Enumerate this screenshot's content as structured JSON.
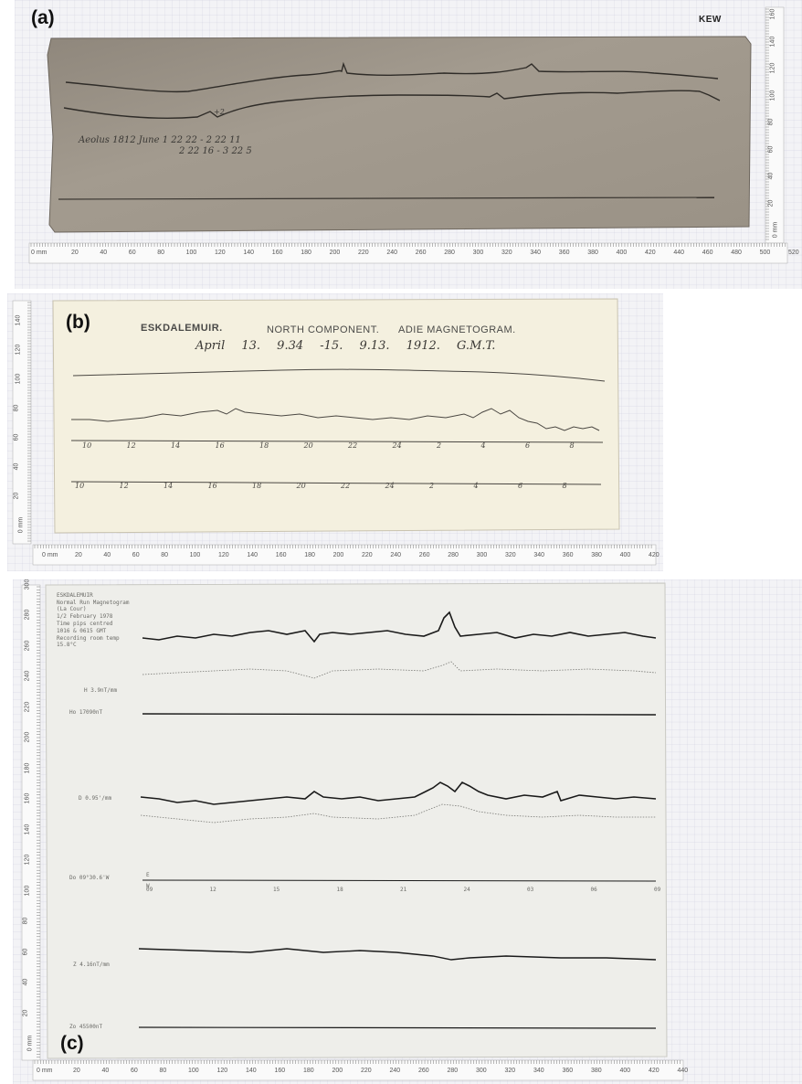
{
  "panels": {
    "a": {
      "label": "(a)",
      "station": "KEW",
      "annotation_line1": "Aeolus 1812 June 1 22 22 - 2 22 11",
      "annotation_line2": "2 22 16 - 3 22 5",
      "mark": "+2",
      "ruler_unit": "0 mm",
      "ruler_numbers": [
        "20",
        "40",
        "60",
        "80",
        "100",
        "120",
        "140",
        "160",
        "180",
        "200",
        "220",
        "240",
        "260",
        "280",
        "300",
        "320",
        "340",
        "360",
        "380",
        "400",
        "420",
        "440",
        "460",
        "480",
        "500",
        "520"
      ],
      "ruler_vertical": [
        "0 mm",
        "20",
        "40",
        "60",
        "80",
        "100",
        "120",
        "140",
        "160"
      ]
    },
    "b": {
      "label": "(b)",
      "stamp_station": "ESKDALEMUIR.",
      "stamp_component": "NORTH COMPONENT.",
      "stamp_type": "ADIE MAGNETOGRAM.",
      "handwriting": "April 13. 9.34 -15. 9.13. 1912. G.M.T.",
      "times_upper": [
        "10",
        "12",
        "14",
        "16",
        "18",
        "20",
        "22",
        "24",
        "2",
        "4",
        "6",
        "8"
      ],
      "times_lower": [
        "10",
        "12",
        "14",
        "16",
        "18",
        "20",
        "22",
        "24",
        "2",
        "4",
        "6",
        "8"
      ],
      "ruler_unit": "0 mm",
      "ruler_numbers": [
        "20",
        "40",
        "60",
        "80",
        "100",
        "120",
        "140",
        "160",
        "180",
        "200",
        "220",
        "240",
        "260",
        "280",
        "300",
        "320",
        "340",
        "360",
        "380",
        "400",
        "420"
      ],
      "ruler_vertical": [
        "0 mm",
        "20",
        "40",
        "60",
        "80",
        "100",
        "120",
        "140"
      ]
    },
    "c": {
      "label": "(c)",
      "header": [
        "ESKDALEMUIR",
        "Normal Run Magnetogram",
        "(La Cour)",
        "1/2 February 1978",
        "Time pips centred",
        "1016 & 0615 GMT",
        "Recording room temp",
        "15.8°C"
      ],
      "trace_h": "H 3.9nT/mm",
      "base_h": "Ho 17090nT",
      "trace_d": "D 0.95'/mm",
      "base_d": "Do 09°30.6'W",
      "trace_z": "Z 4.16nT/mm",
      "base_z": "Zo 45500nT",
      "axis_e": "E",
      "axis_w": "W",
      "time_labels": [
        "09",
        "12",
        "15",
        "18",
        "21",
        "24",
        "03",
        "06",
        "09"
      ],
      "ruler_unit": "0 mm",
      "ruler_numbers": [
        "20",
        "40",
        "60",
        "80",
        "100",
        "120",
        "140",
        "160",
        "180",
        "200",
        "220",
        "240",
        "260",
        "280",
        "300",
        "320",
        "340",
        "360",
        "380",
        "400",
        "420",
        "440"
      ],
      "ruler_vertical": [
        "0 mm",
        "20",
        "40",
        "60",
        "80",
        "100",
        "120",
        "140",
        "160",
        "180",
        "200",
        "220",
        "240",
        "260",
        "280",
        "300"
      ]
    }
  }
}
